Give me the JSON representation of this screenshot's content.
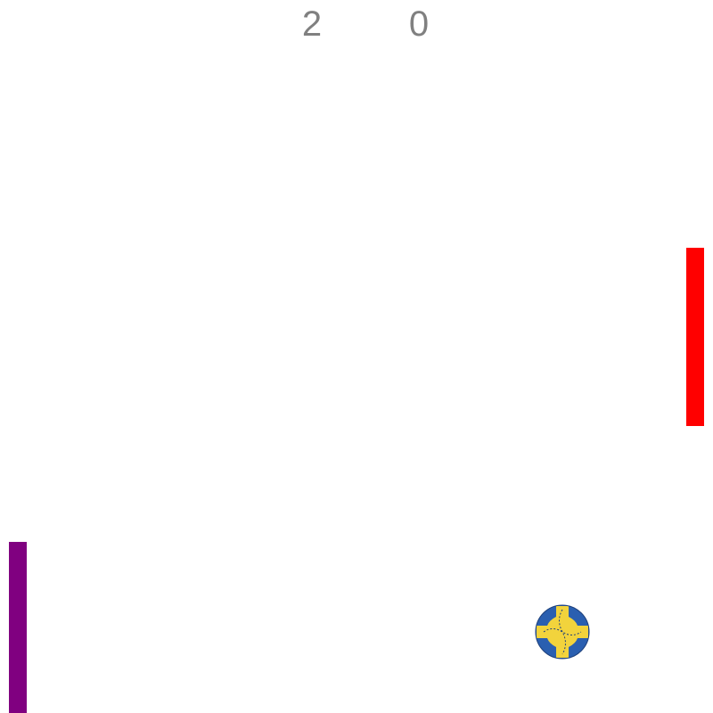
{
  "score": {
    "left": "2",
    "right": "0"
  },
  "paddles": {
    "left": {
      "color": "#800080"
    },
    "right": {
      "color": "#ff0000"
    }
  },
  "ball": {
    "icon": "handball-icon",
    "colors": {
      "primary": "#2a5fb0",
      "secondary": "#f2d33c",
      "stitch": "#1d3f7a"
    }
  }
}
